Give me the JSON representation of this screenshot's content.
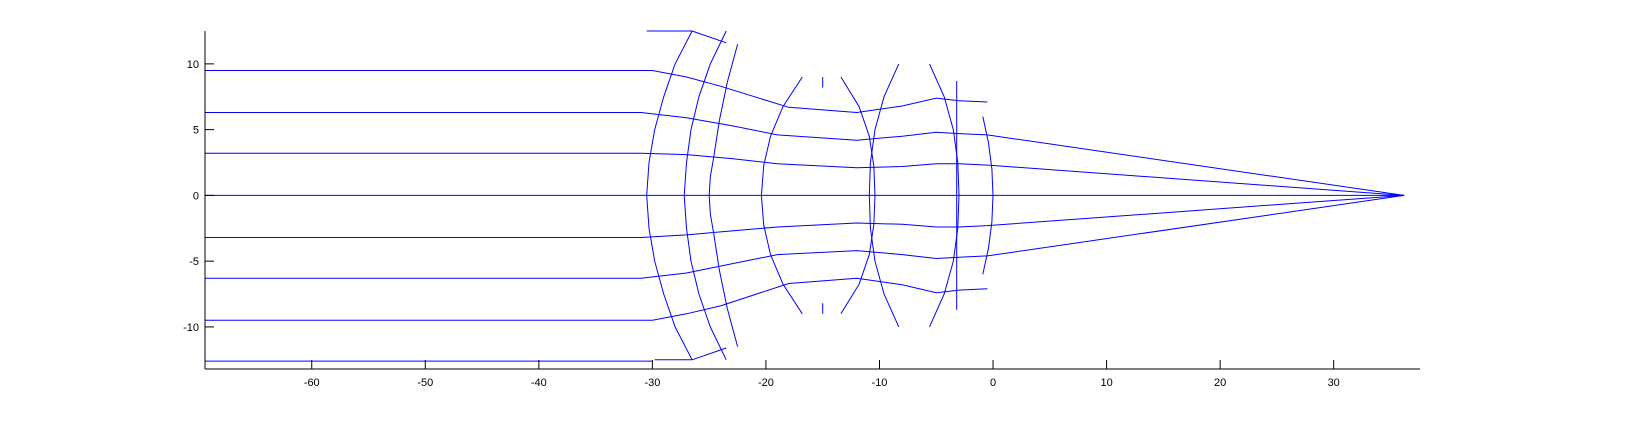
{
  "chart_data": {
    "type": "line",
    "title": "",
    "xlabel": "",
    "ylabel": "",
    "xlim": [
      -69.4,
      37.6
    ],
    "ylim": [
      -13.2,
      12.5
    ],
    "grid": false,
    "legend": "none",
    "line_color": "#0000ff",
    "axis_color": "#000000",
    "x_ticks": [
      -60,
      -50,
      -40,
      -30,
      -20,
      -10,
      0,
      10,
      20,
      30
    ],
    "x_tick_labels": [
      "-60",
      "-50",
      "-40",
      "-30",
      "-20",
      "-10",
      "0",
      "10",
      "20",
      "30"
    ],
    "y_ticks": [
      10,
      5,
      0,
      -5,
      -10
    ],
    "y_tick_labels": [
      "10",
      "5",
      "0",
      "-5",
      "-10"
    ],
    "rays": [
      {
        "x": [
          -69.4,
          -30,
          -27,
          -24,
          -18,
          -12,
          -8,
          -5,
          -3,
          -0.5
        ],
        "y": [
          9.5,
          9.5,
          9.0,
          8.3,
          6.7,
          6.3,
          6.8,
          7.4,
          7.2,
          7.1
        ]
      },
      {
        "x": [
          -69.4,
          -31,
          -27,
          -23,
          -19,
          -12,
          -8,
          -5,
          -3,
          -0.5,
          36.2
        ],
        "y": [
          6.3,
          6.3,
          5.9,
          5.3,
          4.6,
          4.2,
          4.5,
          4.8,
          4.7,
          4.6,
          0
        ]
      },
      {
        "x": [
          -69.4,
          -31,
          -27,
          -23,
          -19,
          -12,
          -8,
          -5,
          -3,
          -0.5,
          36.2
        ],
        "y": [
          3.2,
          3.2,
          3.1,
          2.8,
          2.4,
          2.1,
          2.2,
          2.4,
          2.4,
          2.3,
          0
        ]
      },
      {
        "x": [
          -69.4,
          36.2
        ],
        "y": [
          0,
          0
        ]
      },
      {
        "x": [
          -69.4,
          -31,
          -27,
          -23,
          -19,
          -12,
          -8,
          -5,
          -3,
          -0.5,
          36.2
        ],
        "y": [
          -3.2,
          -3.2,
          -3.0,
          -2.7,
          -2.4,
          -2.1,
          -2.2,
          -2.4,
          -2.4,
          -2.3,
          0
        ]
      },
      {
        "x": [
          -69.4,
          -31,
          -27,
          -23,
          -19,
          -12,
          -8,
          -5,
          -3,
          -0.5,
          36.2
        ],
        "y": [
          -6.3,
          -6.3,
          -5.9,
          -5.2,
          -4.5,
          -4.2,
          -4.5,
          -4.8,
          -4.7,
          -4.6,
          0
        ]
      },
      {
        "x": [
          -69.4,
          -30,
          -27,
          -24,
          -18,
          -12,
          -8,
          -5,
          -3,
          -0.5
        ],
        "y": [
          -9.5,
          -9.5,
          -9.0,
          -8.4,
          -6.7,
          -6.3,
          -6.8,
          -7.4,
          -7.2,
          -7.1
        ]
      },
      {
        "x": [
          -69.4,
          -30
        ],
        "y": [
          -12.6,
          -12.6
        ]
      }
    ],
    "surfaces": [
      {
        "x": [
          -26.5,
          -28.0,
          -29.0,
          -29.8,
          -30.3,
          -30.5,
          -30.3,
          -29.8,
          -29.0,
          -28.0,
          -26.5
        ],
        "y": [
          12.5,
          10,
          7.5,
          5,
          2.5,
          0,
          -2.5,
          -5,
          -7.5,
          -10,
          -12.5
        ]
      },
      {
        "x": [
          -23.5,
          -24.9,
          -25.9,
          -26.6,
          -27.0,
          -27.2,
          -27.0,
          -26.6,
          -25.9,
          -24.9,
          -23.5
        ],
        "y": [
          12.5,
          10,
          7.5,
          5,
          2.5,
          0,
          -2.5,
          -5,
          -7.5,
          -10,
          -12.5
        ]
      },
      {
        "x": [
          -22.5,
          -23.4,
          -24.1,
          -24.6,
          -24.9,
          -25.0,
          -24.9,
          -24.6,
          -24.1,
          -23.4,
          -22.5
        ],
        "y": [
          11.5,
          8.6,
          5.7,
          2.9,
          1.4,
          0,
          -1.4,
          -2.9,
          -5.7,
          -8.6,
          -11.5
        ]
      },
      {
        "x": [
          -16.8,
          -18.5,
          -19.6,
          -20.2,
          -20.4,
          -20.2,
          -19.6,
          -18.5,
          -16.8
        ],
        "y": [
          9,
          6.75,
          4.5,
          2.25,
          0,
          -2.25,
          -4.5,
          -6.75,
          -9
        ]
      },
      {
        "x": [
          -15.0,
          -15.0
        ],
        "y": [
          9,
          8.2
        ]
      },
      {
        "x": [
          -15.0,
          -15.0
        ],
        "y": [
          -8.2,
          -9
        ]
      },
      {
        "x": [
          -13.4,
          -11.8,
          -10.9,
          -10.5,
          -10.4,
          -10.5,
          -10.9,
          -11.8,
          -13.4
        ],
        "y": [
          9,
          6.75,
          4.5,
          2.25,
          0,
          -2.25,
          -4.5,
          -6.75,
          -9
        ]
      },
      {
        "x": [
          -8.3,
          -9.6,
          -10.4,
          -10.8,
          -10.9,
          -10.8,
          -10.4,
          -9.6,
          -8.3
        ],
        "y": [
          10,
          7.5,
          5,
          2.5,
          0,
          -2.5,
          -5,
          -7.5,
          -10
        ]
      },
      {
        "x": [
          -5.6,
          -4.3,
          -3.5,
          -3.1,
          -3.0,
          -3.1,
          -3.5,
          -4.3,
          -5.6
        ],
        "y": [
          10,
          7.5,
          5,
          2.5,
          0,
          -2.5,
          -5,
          -7.5,
          -10
        ]
      },
      {
        "x": [
          -3.2,
          -3.2
        ],
        "y": [
          8.7,
          -8.7
        ]
      },
      {
        "x": [
          -0.9,
          -0.4,
          -0.1,
          0.0,
          -0.1,
          -0.4,
          -0.9
        ],
        "y": [
          6,
          4,
          2,
          0,
          -2,
          -4,
          -6
        ]
      }
    ],
    "edges": [
      {
        "x": [
          -30.5,
          -26.5,
          -23.5
        ],
        "y": [
          12.5,
          12.5,
          11.6
        ]
      },
      {
        "x": [
          -29.8,
          -26.5,
          -23.5
        ],
        "y": [
          -12.5,
          -12.5,
          -11.6
        ]
      }
    ]
  }
}
